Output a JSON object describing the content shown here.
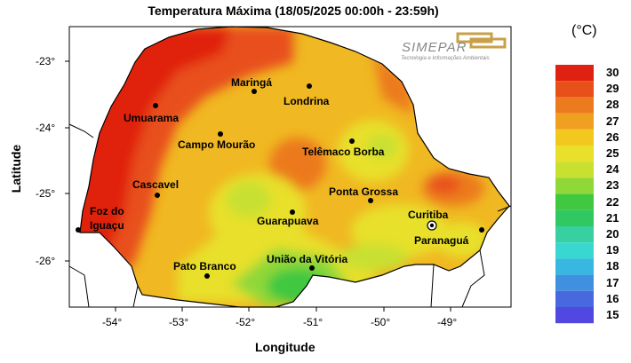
{
  "title": "Temperatura Máxima (18/05/2025 00:00h - 23:59h)",
  "unit": "(°C)",
  "axes": {
    "xlabel": "Longitude",
    "ylabel": "Latitude",
    "xticks": [
      "-54°",
      "-53°",
      "-52°",
      "-51°",
      "-50°",
      "-49°"
    ],
    "yticks": [
      "-23°",
      "-24°",
      "-25°",
      "-26°"
    ]
  },
  "logo": {
    "name": "SIMEPAR",
    "tagline": "Tecnologia e Informações Ambientais"
  },
  "colorbar": {
    "labels": [
      "30",
      "29",
      "28",
      "27",
      "26",
      "25",
      "24",
      "23",
      "22",
      "21",
      "20",
      "19",
      "18",
      "17",
      "16",
      "15"
    ],
    "colors": [
      "#e02010",
      "#e8501a",
      "#ec7a1e",
      "#f0a020",
      "#f2c81e",
      "#e8e02a",
      "#c8e030",
      "#90d838",
      "#40c840",
      "#30c860",
      "#38d0a0",
      "#38d8d0",
      "#38b8e0",
      "#4090e0",
      "#4868e0",
      "#5048e0"
    ]
  },
  "cities": [
    {
      "name": "Maringá"
    },
    {
      "name": "Londrina"
    },
    {
      "name": "Umuarama"
    },
    {
      "name": "Campo Mourão"
    },
    {
      "name": "Telêmaco Borba"
    },
    {
      "name": "Cascavel"
    },
    {
      "name": "Ponta Grossa"
    },
    {
      "name": "Foz do"
    },
    {
      "name": "Iguaçu"
    },
    {
      "name": "Guarapuava"
    },
    {
      "name": "Curitiba"
    },
    {
      "name": "Paranaguá"
    },
    {
      "name": "União da Vitória"
    },
    {
      "name": "Pato Branco"
    }
  ]
}
